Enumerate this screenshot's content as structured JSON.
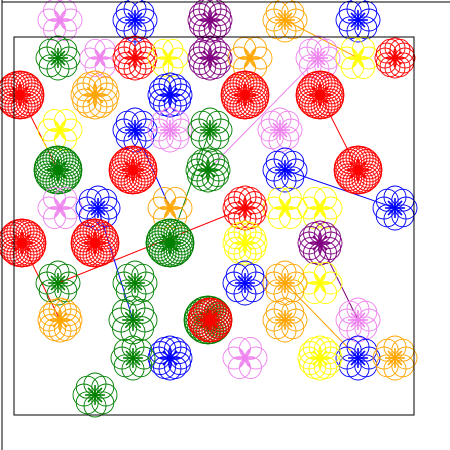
{
  "canvas": {
    "background": "#ffffff",
    "axis_color": "#000000",
    "frame_color": "#000000"
  },
  "palette": {
    "red": "#ff0000",
    "green": "#008000",
    "blue": "#0000ff",
    "yellow": "#ffff00",
    "orange": "#ffa500",
    "violet": "#ee82ee",
    "purple": "#800080"
  },
  "rosettes": [
    {
      "color": "violet",
      "petals": 6
    },
    {
      "color": "blue",
      "petals": 8
    },
    {
      "color": "purple",
      "petals": 12
    },
    {
      "color": "orange",
      "petals": 8
    },
    {
      "color": "blue",
      "petals": 8
    },
    {
      "color": "green",
      "petals": 8
    },
    {
      "color": "violet",
      "petals": 6
    },
    {
      "color": "red",
      "petals": 12
    },
    {
      "color": "yellow",
      "petals": 6
    },
    {
      "color": "purple",
      "petals": 12
    },
    {
      "color": "orange",
      "petals": 6
    },
    {
      "color": "violet",
      "petals": 8
    },
    {
      "color": "yellow",
      "petals": 6
    },
    {
      "color": "red",
      "petals": 12
    },
    {
      "color": "red",
      "petals": 24
    },
    {
      "color": "orange",
      "petals": 12
    },
    {
      "color": "blue",
      "petals": 12
    },
    {
      "color": "red",
      "petals": 24
    },
    {
      "color": "red",
      "petals": 24
    },
    {
      "color": "yellow",
      "petals": 6
    },
    {
      "color": "blue",
      "petals": 8
    },
    {
      "color": "violet",
      "petals": 8
    },
    {
      "color": "green",
      "petals": 8
    },
    {
      "color": "violet",
      "petals": 8
    },
    {
      "color": "green",
      "petals": 24
    },
    {
      "color": "red",
      "petals": 24
    },
    {
      "color": "green",
      "petals": 12
    },
    {
      "color": "blue",
      "petals": 8
    },
    {
      "color": "red",
      "petals": 24
    },
    {
      "color": "violet",
      "petals": 6
    },
    {
      "color": "blue",
      "petals": 8
    },
    {
      "color": "orange",
      "petals": 6
    },
    {
      "color": "yellow",
      "petals": 6
    },
    {
      "color": "red",
      "petals": 12
    },
    {
      "color": "yellow",
      "petals": 6
    },
    {
      "color": "blue",
      "petals": 8
    },
    {
      "color": "red",
      "petals": 24
    },
    {
      "color": "red",
      "petals": 24
    },
    {
      "color": "green",
      "petals": 24
    },
    {
      "color": "yellow",
      "petals": 12
    },
    {
      "color": "purple",
      "petals": 12
    },
    {
      "color": "green",
      "petals": 8
    },
    {
      "color": "green",
      "petals": 8
    },
    {
      "color": "yellow",
      "petals": 6
    },
    {
      "color": "blue",
      "petals": 8
    },
    {
      "color": "orange",
      "petals": 8
    },
    {
      "color": "orange",
      "petals": 12
    },
    {
      "color": "green",
      "petals": 8
    },
    {
      "color": "green",
      "petals": 24
    },
    {
      "color": "red",
      "petals": 24
    },
    {
      "color": "orange",
      "petals": 8
    },
    {
      "color": "violet",
      "petals": 8
    },
    {
      "color": "blue",
      "petals": 12
    },
    {
      "color": "green",
      "petals": 8
    },
    {
      "color": "blue",
      "petals": 8
    },
    {
      "color": "orange",
      "petals": 8
    },
    {
      "color": "violet",
      "petals": 6
    },
    {
      "color": "green",
      "petals": 8
    },
    {
      "color": "yellow",
      "petals": 12
    }
  ]
}
